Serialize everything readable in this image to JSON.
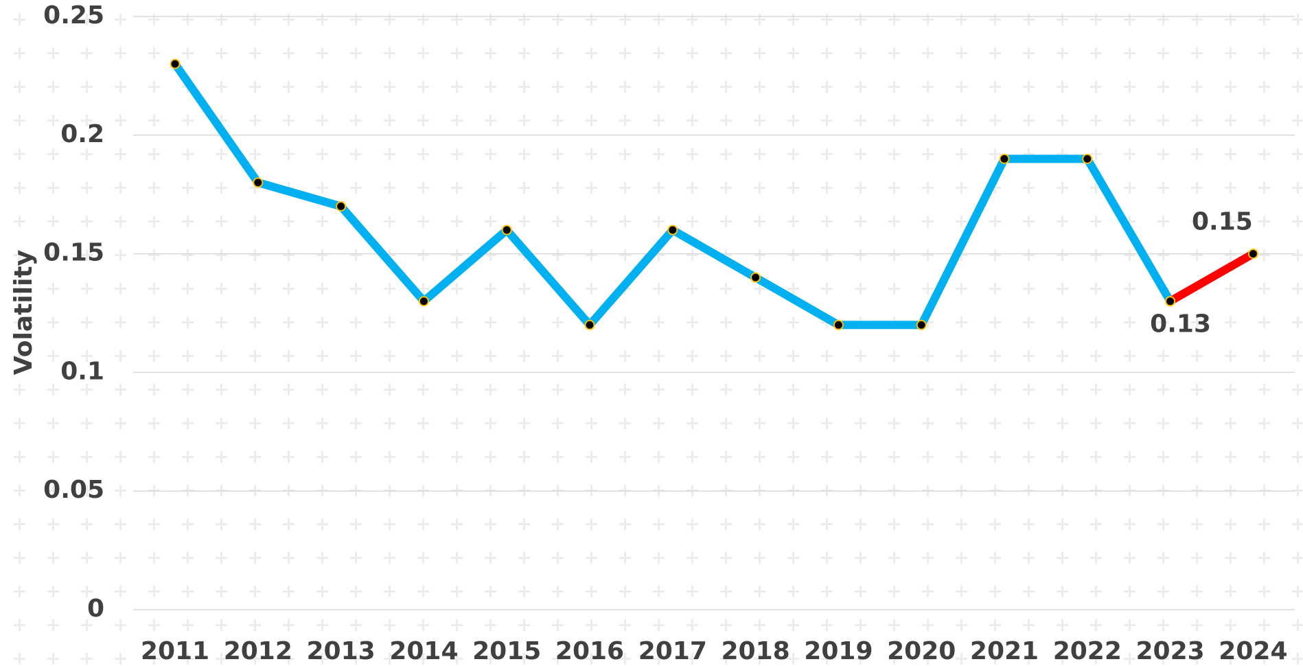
{
  "chart_data": {
    "type": "line",
    "y_label": "Volatility",
    "categories": [
      "2011",
      "2012",
      "2013",
      "2014",
      "2015",
      "2016",
      "2017",
      "2018",
      "2019",
      "2020",
      "2021",
      "2022",
      "2023",
      "2024"
    ],
    "series": [
      {
        "color": "#00b0f0",
        "values": [
          0.23,
          0.18,
          0.17,
          0.13,
          0.16,
          0.12,
          0.16,
          0.14,
          0.12,
          0.12,
          0.19,
          0.19,
          0.13,
          null
        ]
      },
      {
        "color": "#ff0000",
        "values": [
          null,
          null,
          null,
          null,
          null,
          null,
          null,
          null,
          null,
          null,
          null,
          null,
          0.13,
          0.15
        ],
        "data_labels": true
      }
    ],
    "ylim": [
      0,
      0.25
    ],
    "yticks": [
      0,
      0.05,
      0.1,
      0.15,
      0.2,
      0.25
    ],
    "grid": true,
    "marker_color": "#000000",
    "marker_edge_color": "#ffc000"
  }
}
